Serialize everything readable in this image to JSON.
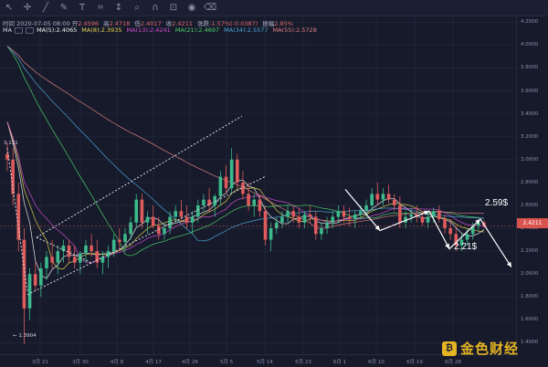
{
  "toolbar": {
    "icons": [
      "cursor-icon",
      "crosshair-icon",
      "trend-line-icon",
      "pen-icon",
      "text-icon",
      "pattern-icon",
      "measure-icon",
      "zoom-icon",
      "magnet-icon",
      "lock-icon",
      "eye-icon",
      "trash-icon"
    ]
  },
  "ohlc": {
    "time_label": "时间",
    "time": "2020-07-05 08:00",
    "open_label": "开",
    "open": "2.4596",
    "high_label": "高",
    "high": "2.4718",
    "low_label": "低",
    "low": "2.4017",
    "close_label": "收",
    "close": "2.4211",
    "change_label": "涨跌",
    "change": "-1.57%(-0.0387)",
    "amp_label": "振幅",
    "amp": "2.85%"
  },
  "ma_legend": {
    "label": "MA",
    "items": [
      {
        "text": "MA(5):2.4065",
        "color": "#f0f0f0"
      },
      {
        "text": "MA(8):2.3935",
        "color": "#e8d44d"
      },
      {
        "text": "MA(13):2.4241",
        "color": "#d14fd1"
      },
      {
        "text": "MA(21):2.4697",
        "color": "#4fd16a"
      },
      {
        "text": "MA(34):2.5577",
        "color": "#4fa3d1"
      },
      {
        "text": "MA(55):2.5728",
        "color": "#e08080"
      }
    ]
  },
  "price_axis": [
    "4.2000",
    "4.0000",
    "3.8000",
    "3.6000",
    "3.4000",
    "3.2000",
    "3.0000",
    "2.8000",
    "2.6000",
    "2.4000",
    "2.2000",
    "2.0000",
    "1.8000",
    "1.6000",
    "1.4000"
  ],
  "current_price": "2.4211",
  "time_axis": [
    "3月 21",
    "3月 30",
    "4月 8",
    "4月 17",
    "4月 26",
    "5月 5",
    "5月 14",
    "5月 23",
    "6月 1",
    "6月 10",
    "6月 19",
    "6月 28"
  ],
  "low_marker": "← 1.3904",
  "high_marker": "3.151",
  "annotations": {
    "upper": "2.59$",
    "lower": "2.21$"
  },
  "watermark": {
    "logo_glyph": "₿",
    "text": "金色财经"
  },
  "colors": {
    "background": "#161a2b",
    "up": "#3cba8c",
    "down": "#e05c5c",
    "accent": "#e6b422"
  },
  "chart_data": {
    "type": "candlestick",
    "title": "",
    "ylim": [
      1.3,
      4.25
    ],
    "candles": [
      [
        3.05,
        3.15,
        2.9,
        3.0
      ],
      [
        3.0,
        3.1,
        2.6,
        2.7
      ],
      [
        2.7,
        2.8,
        2.2,
        2.3
      ],
      [
        2.3,
        2.4,
        1.39,
        1.7
      ],
      [
        1.7,
        2.05,
        1.6,
        2.0
      ],
      [
        2.0,
        2.1,
        1.85,
        1.9
      ],
      [
        1.9,
        2.1,
        1.8,
        2.05
      ],
      [
        2.05,
        2.2,
        1.95,
        2.15
      ],
      [
        2.15,
        2.3,
        2.05,
        2.1
      ],
      [
        2.1,
        2.25,
        2.0,
        2.2
      ],
      [
        2.2,
        2.3,
        2.1,
        2.25
      ],
      [
        2.25,
        2.3,
        2.1,
        2.15
      ],
      [
        2.15,
        2.25,
        2.05,
        2.1
      ],
      [
        2.1,
        2.2,
        2.0,
        2.18
      ],
      [
        2.18,
        2.3,
        2.1,
        2.25
      ],
      [
        2.25,
        2.35,
        2.15,
        2.2
      ],
      [
        2.2,
        2.3,
        2.05,
        2.1
      ],
      [
        2.1,
        2.2,
        2.0,
        2.15
      ],
      [
        2.15,
        2.25,
        2.05,
        2.2
      ],
      [
        2.2,
        2.35,
        2.15,
        2.3
      ],
      [
        2.3,
        2.4,
        2.2,
        2.28
      ],
      [
        2.28,
        2.4,
        2.2,
        2.35
      ],
      [
        2.35,
        2.5,
        2.3,
        2.45
      ],
      [
        2.45,
        2.7,
        2.4,
        2.65
      ],
      [
        2.65,
        2.7,
        2.4,
        2.45
      ],
      [
        2.45,
        2.55,
        2.35,
        2.5
      ],
      [
        2.5,
        2.6,
        2.4,
        2.42
      ],
      [
        2.42,
        2.5,
        2.3,
        2.35
      ],
      [
        2.35,
        2.45,
        2.3,
        2.4
      ],
      [
        2.4,
        2.55,
        2.35,
        2.5
      ],
      [
        2.5,
        2.6,
        2.45,
        2.55
      ],
      [
        2.55,
        2.65,
        2.45,
        2.5
      ],
      [
        2.5,
        2.6,
        2.4,
        2.45
      ],
      [
        2.45,
        2.55,
        2.35,
        2.5
      ],
      [
        2.5,
        2.65,
        2.45,
        2.6
      ],
      [
        2.6,
        2.7,
        2.55,
        2.65
      ],
      [
        2.65,
        2.75,
        2.55,
        2.6
      ],
      [
        2.6,
        2.7,
        2.5,
        2.68
      ],
      [
        2.68,
        2.9,
        2.6,
        2.85
      ],
      [
        2.85,
        2.95,
        2.7,
        2.75
      ],
      [
        2.75,
        3.1,
        2.7,
        3.0
      ],
      [
        3.0,
        3.05,
        2.75,
        2.8
      ],
      [
        2.8,
        2.9,
        2.65,
        2.7
      ],
      [
        2.7,
        2.8,
        2.55,
        2.6
      ],
      [
        2.6,
        2.7,
        2.5,
        2.65
      ],
      [
        2.65,
        2.7,
        2.5,
        2.55
      ],
      [
        2.55,
        2.6,
        2.25,
        2.3
      ],
      [
        2.3,
        2.45,
        2.2,
        2.4
      ],
      [
        2.4,
        2.5,
        2.35,
        2.45
      ],
      [
        2.45,
        2.55,
        2.4,
        2.5
      ],
      [
        2.5,
        2.6,
        2.45,
        2.55
      ],
      [
        2.55,
        2.6,
        2.45,
        2.5
      ],
      [
        2.5,
        2.58,
        2.4,
        2.45
      ],
      [
        2.45,
        2.55,
        2.4,
        2.52
      ],
      [
        2.52,
        2.6,
        2.45,
        2.5
      ],
      [
        2.5,
        2.55,
        2.3,
        2.35
      ],
      [
        2.35,
        2.45,
        2.3,
        2.4
      ],
      [
        2.4,
        2.5,
        2.35,
        2.45
      ],
      [
        2.45,
        2.55,
        2.4,
        2.5
      ],
      [
        2.5,
        2.6,
        2.45,
        2.55
      ],
      [
        2.55,
        2.6,
        2.45,
        2.5
      ],
      [
        2.5,
        2.58,
        2.42,
        2.48
      ],
      [
        2.48,
        2.55,
        2.4,
        2.52
      ],
      [
        2.52,
        2.6,
        2.48,
        2.55
      ],
      [
        2.55,
        2.65,
        2.5,
        2.6
      ],
      [
        2.6,
        2.75,
        2.55,
        2.7
      ],
      [
        2.7,
        2.8,
        2.6,
        2.65
      ],
      [
        2.65,
        2.75,
        2.6,
        2.7
      ],
      [
        2.7,
        2.78,
        2.62,
        2.65
      ],
      [
        2.65,
        2.7,
        2.55,
        2.6
      ],
      [
        2.6,
        2.68,
        2.4,
        2.45
      ],
      [
        2.45,
        2.55,
        2.4,
        2.5
      ],
      [
        2.5,
        2.58,
        2.45,
        2.52
      ],
      [
        2.52,
        2.6,
        2.45,
        2.5
      ],
      [
        2.5,
        2.55,
        2.42,
        2.45
      ],
      [
        2.45,
        2.55,
        2.4,
        2.5
      ],
      [
        2.5,
        2.58,
        2.45,
        2.55
      ],
      [
        2.55,
        2.6,
        2.45,
        2.48
      ],
      [
        2.48,
        2.52,
        2.35,
        2.4
      ],
      [
        2.4,
        2.48,
        2.3,
        2.35
      ],
      [
        2.35,
        2.42,
        2.2,
        2.25
      ],
      [
        2.25,
        2.35,
        2.2,
        2.3
      ],
      [
        2.3,
        2.4,
        2.25,
        2.35
      ],
      [
        2.35,
        2.45,
        2.3,
        2.42
      ],
      [
        2.42,
        2.48,
        2.38,
        2.45
      ],
      [
        2.45,
        2.47,
        2.4,
        2.42
      ]
    ],
    "series": [
      {
        "name": "MA(5)",
        "color": "#f0f0f0"
      },
      {
        "name": "MA(8)",
        "color": "#e8d44d"
      },
      {
        "name": "MA(13)",
        "color": "#d14fd1"
      },
      {
        "name": "MA(21)",
        "color": "#4fd16a"
      },
      {
        "name": "MA(34)",
        "color": "#4fa3d1"
      },
      {
        "name": "MA(55)",
        "color": "#e08080"
      }
    ]
  }
}
